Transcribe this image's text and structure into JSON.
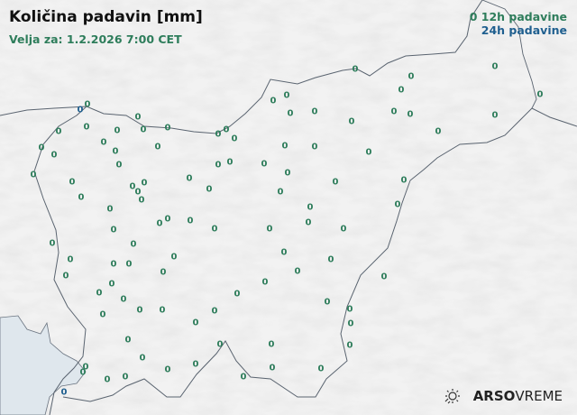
{
  "header": {
    "title": "Količina padavin [mm]",
    "valid_for": "Velja za: 1.2.2026 7:00 CET"
  },
  "legend": {
    "sample_value": "0",
    "item_12h": "12h padavine",
    "item_24h": "24h padavine"
  },
  "colors": {
    "p12h": "#2e7d5b",
    "p24h": "#1f5f8f",
    "sea": "#dfe7ed",
    "land": "#f2f2f2",
    "border": "#5a6470"
  },
  "logo": {
    "brand": "ARSO",
    "product": "VREME",
    "icon": "sun-rain-icon"
  },
  "stations_12h_value": "0",
  "stations_24h_value": "0"
}
